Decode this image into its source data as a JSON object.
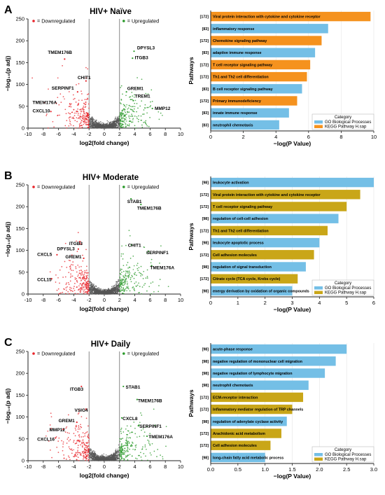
{
  "panels": [
    {
      "letter": "A",
      "title": "HIV+ Naïve",
      "volcano": {
        "xlabel": "log2(fold change)",
        "ylabel": "−log₁₀(p adj)",
        "ymax": 250,
        "yticks": [
          0,
          50,
          100,
          150,
          200,
          250
        ],
        "xticks": [
          -10,
          -8,
          -6,
          -4,
          -2,
          0,
          2,
          4,
          6,
          8,
          10
        ],
        "legend_down": "= Downregulated",
        "legend_up": "= Upregulated",
        "genes": [
          {
            "name": "TMEM176B",
            "x": -5.2,
            "y": 158,
            "lx": -7.4,
            "ly": 170,
            "side": "down"
          },
          {
            "name": "CHIT1",
            "x": -2.4,
            "y": 108,
            "lx": -3.5,
            "ly": 112,
            "side": "down"
          },
          {
            "name": "SERPINF1",
            "x": -3.5,
            "y": 83,
            "lx": -6.9,
            "ly": 88,
            "side": "down"
          },
          {
            "name": "TMEM176A",
            "x": -6.3,
            "y": 57,
            "lx": -9.4,
            "ly": 55,
            "side": "down"
          },
          {
            "name": "CXCL10",
            "x": -7.0,
            "y": 38,
            "lx": -9.4,
            "ly": 36,
            "side": "down"
          },
          {
            "name": "DPYSL3",
            "x": 3.9,
            "y": 176,
            "lx": 4.3,
            "ly": 180,
            "side": "up"
          },
          {
            "name": "ITGB3",
            "x": 3.7,
            "y": 160,
            "lx": 4.0,
            "ly": 158,
            "side": "up"
          },
          {
            "name": "GREM1",
            "x": 2.9,
            "y": 83,
            "lx": 3.0,
            "ly": 87,
            "side": "up"
          },
          {
            "name": "TREM1",
            "x": 3.8,
            "y": 63,
            "lx": 4.0,
            "ly": 70,
            "side": "up"
          },
          {
            "name": "MMP12",
            "x": 6.3,
            "y": 45,
            "lx": 6.6,
            "ly": 42,
            "side": "up"
          }
        ]
      },
      "bars": {
        "xlabel": "−log(P Value)",
        "ylabel": "Pathways",
        "xmax": 10,
        "xticks": [
          0,
          2,
          4,
          6,
          8,
          10
        ],
        "legend_title": "Category",
        "legend_items": [
          {
            "label": "GO Biological Processes",
            "color": "#74bfe6"
          },
          {
            "label": "KEGG Pathway H.sap",
            "color": "#f5921e"
          }
        ],
        "items": [
          {
            "label": "Viral protein interaction with cytokine and cytokine receptor",
            "count": "[172]",
            "value": 9.8,
            "cat": "kegg"
          },
          {
            "label": "inflammatory response",
            "count": "[83]",
            "value": 7.2,
            "cat": "go"
          },
          {
            "label": "Chemokine signaling pathway",
            "count": "[172]",
            "value": 6.8,
            "cat": "kegg"
          },
          {
            "label": "adaptive immune response",
            "count": "[83]",
            "value": 6.4,
            "cat": "go"
          },
          {
            "label": "T cell receptor signaling pathway",
            "count": "[172]",
            "value": 6.1,
            "cat": "kegg"
          },
          {
            "label": "Th1 and Th2 cell differentiation",
            "count": "[172]",
            "value": 5.9,
            "cat": "kegg"
          },
          {
            "label": "B cell receptor signaling pathway",
            "count": "[83]",
            "value": 5.6,
            "cat": "go"
          },
          {
            "label": "Primary immunodeficiency",
            "count": "[172]",
            "value": 5.3,
            "cat": "kegg"
          },
          {
            "label": "innate immune response",
            "count": "[83]",
            "value": 4.8,
            "cat": "go"
          },
          {
            "label": "neutrophil chemotaxis",
            "count": "[83]",
            "value": 4.2,
            "cat": "go"
          }
        ]
      }
    },
    {
      "letter": "B",
      "title": "HIV+ Moderate",
      "volcano": {
        "xlabel": "log2(fold change)",
        "ylabel": "−log₁₀(p adj)",
        "ymax": 250,
        "yticks": [
          0,
          50,
          100,
          150,
          200,
          250
        ],
        "xticks": [
          -10,
          -8,
          -6,
          -4,
          -2,
          0,
          2,
          4,
          6,
          8,
          10
        ],
        "legend_down": "= Downregulated",
        "legend_up": "= Upregulated",
        "genes": [
          {
            "name": "STAB1",
            "x": 3.5,
            "y": 218,
            "lx": 3.0,
            "ly": 208,
            "side": "up"
          },
          {
            "name": "TMEM176B",
            "x": 4.8,
            "y": 205,
            "lx": 4.3,
            "ly": 193,
            "side": "up"
          },
          {
            "name": "ITGB3",
            "x": -3.2,
            "y": 120,
            "lx": -4.6,
            "ly": 112,
            "side": "down"
          },
          {
            "name": "DPYSL3",
            "x": -3.4,
            "y": 103,
            "lx": -6.2,
            "ly": 100,
            "side": "down"
          },
          {
            "name": "GREM1",
            "x": -2.7,
            "y": 82,
            "lx": -5.1,
            "ly": 82,
            "side": "down"
          },
          {
            "name": "CXCL5",
            "x": -6.2,
            "y": 90,
            "lx": -8.8,
            "ly": 87,
            "side": "down"
          },
          {
            "name": "CCL15",
            "x": -6.9,
            "y": 35,
            "lx": -8.8,
            "ly": 30,
            "side": "down"
          },
          {
            "name": "CHIT1",
            "x": 3.6,
            "y": 112,
            "lx": 3.1,
            "ly": 108,
            "side": "up"
          },
          {
            "name": "SERPINF1",
            "x": 5.8,
            "y": 98,
            "lx": 5.5,
            "ly": 91,
            "side": "up"
          },
          {
            "name": "TMEM176A",
            "x": 6.2,
            "y": 65,
            "lx": 6.0,
            "ly": 57,
            "side": "up"
          }
        ]
      },
      "bars": {
        "xlabel": "−log(P Value)",
        "ylabel": "Pathways",
        "xmax": 6,
        "xticks": [
          0,
          1,
          2,
          3,
          4,
          5,
          6
        ],
        "legend_title": "Category",
        "legend_items": [
          {
            "label": "GO Biological Processes",
            "color": "#74bfe6"
          },
          {
            "label": "KEGG Pathway H.sap",
            "color": "#c9a618"
          }
        ],
        "items": [
          {
            "label": "leukocyte activation",
            "count": "[98]",
            "value": 6.0,
            "cat": "go"
          },
          {
            "label": "Viral protein interaction with cytokine and cytokine receptor",
            "count": "[172]",
            "value": 5.5,
            "cat": "kegg"
          },
          {
            "label": "T cell receptor signaling pathway",
            "count": "[172]",
            "value": 5.0,
            "cat": "kegg"
          },
          {
            "label": "regulation of cell-cell adhesion",
            "count": "[98]",
            "value": 4.7,
            "cat": "go"
          },
          {
            "label": "Th1 and Th2 cell differentiation",
            "count": "[172]",
            "value": 4.3,
            "cat": "kegg"
          },
          {
            "label": "leukocyte apoptotic process",
            "count": "[98]",
            "value": 4.0,
            "cat": "go"
          },
          {
            "label": "Cell adhesion molecules",
            "count": "[172]",
            "value": 3.8,
            "cat": "kegg"
          },
          {
            "label": "regulation of signal transduction",
            "count": "[98]",
            "value": 3.5,
            "cat": "go"
          },
          {
            "label": "Citrate cycle (TCA cycle, Krebs cycle)",
            "count": "[172]",
            "value": 3.2,
            "cat": "kegg"
          },
          {
            "label": "energy derivation by oxidation of organic compounds",
            "count": "[98]",
            "value": 3.0,
            "cat": "go"
          }
        ]
      }
    },
    {
      "letter": "C",
      "title": "HIV+ Daily",
      "volcano": {
        "xlabel": "log2(fold change)",
        "ylabel": "−log₁₀(p adj)",
        "ymax": 250,
        "yticks": [
          0,
          50,
          100,
          150,
          200,
          250
        ],
        "xticks": [
          -10,
          -8,
          -6,
          -4,
          -2,
          0,
          2,
          4,
          6,
          8,
          10
        ],
        "legend_down": "= Downregulated",
        "legend_up": "= Upregulated",
        "genes": [
          {
            "name": "ITGB3",
            "x": -3.0,
            "y": 170,
            "lx": -4.5,
            "ly": 160,
            "side": "down"
          },
          {
            "name": "VSIG4",
            "x": -2.4,
            "y": 118,
            "lx": -3.9,
            "ly": 112,
            "side": "down"
          },
          {
            "name": "GREM1",
            "x": -3.6,
            "y": 88,
            "lx": -6.0,
            "ly": 88,
            "side": "down"
          },
          {
            "name": "MMP12",
            "x": -5.4,
            "y": 72,
            "lx": -7.2,
            "ly": 67,
            "side": "down"
          },
          {
            "name": "CXCL16",
            "x": -6.4,
            "y": 52,
            "lx": -8.8,
            "ly": 46,
            "side": "down"
          },
          {
            "name": "STAB1",
            "x": 2.5,
            "y": 170,
            "lx": 2.8,
            "ly": 165,
            "side": "up"
          },
          {
            "name": "TMEM176B",
            "x": 4.3,
            "y": 140,
            "lx": 4.4,
            "ly": 134,
            "side": "up"
          },
          {
            "name": "CXCL8",
            "x": 2.3,
            "y": 98,
            "lx": 2.4,
            "ly": 93,
            "side": "up"
          },
          {
            "name": "SERPINF1",
            "x": 4.5,
            "y": 80,
            "lx": 4.6,
            "ly": 75,
            "side": "up"
          },
          {
            "name": "TMEM176A",
            "x": 5.6,
            "y": 56,
            "lx": 5.8,
            "ly": 51,
            "side": "up"
          }
        ]
      },
      "bars": {
        "xlabel": "−log(P Value)",
        "ylabel": "Pathways",
        "xmax": 3,
        "xticks": [
          0.0,
          0.5,
          1.0,
          1.5,
          2.0,
          2.5,
          3.0
        ],
        "legend_title": "Category",
        "legend_items": [
          {
            "label": "GO Biological Processes",
            "color": "#74bfe6"
          },
          {
            "label": "KEGG Pathway H.sap",
            "color": "#c9a618"
          }
        ],
        "items": [
          {
            "label": "acute-phase response",
            "count": "[98]",
            "value": 2.5,
            "cat": "go"
          },
          {
            "label": "negative regulation of mononuclear cell migration",
            "count": "[98]",
            "value": 2.3,
            "cat": "go"
          },
          {
            "label": "negative regulation of lymphocyte migration",
            "count": "[98]",
            "value": 2.1,
            "cat": "go"
          },
          {
            "label": "neutrophil chemotaxis",
            "count": "[98]",
            "value": 1.8,
            "cat": "go"
          },
          {
            "label": "ECM-receptor interaction",
            "count": "[172]",
            "value": 1.7,
            "cat": "kegg"
          },
          {
            "label": "Inflammatory mediator regulation of TRP channels",
            "count": "[172]",
            "value": 1.5,
            "cat": "kegg"
          },
          {
            "label": "regulation of adenylate cyclase activity",
            "count": "[98]",
            "value": 1.4,
            "cat": "go"
          },
          {
            "label": "Arachidonic acid metabolism",
            "count": "[172]",
            "value": 1.3,
            "cat": "kegg"
          },
          {
            "label": "Cell adhesion molecules",
            "count": "[172]",
            "value": 1.1,
            "cat": "kegg"
          },
          {
            "label": "long-chain fatty acid metabolic process",
            "count": "[98]",
            "value": 1.0,
            "cat": "go"
          }
        ]
      }
    }
  ],
  "colors": {
    "down": "#e8242a",
    "up": "#2a9a2a",
    "ns": "#555555",
    "go": "#74bfe6",
    "kegg_a": "#f5921e",
    "kegg_bc": "#c9a618"
  },
  "chart_data": [
    {
      "type": "scatter",
      "title": "HIV+ Naïve",
      "xlabel": "log2(fold change)",
      "ylabel": "−log10(p adj)",
      "xlim": [
        -10,
        10
      ],
      "ylim": [
        0,
        250
      ]
    },
    {
      "type": "bar",
      "orientation": "horizontal",
      "xlabel": "−log(P Value)",
      "ylabel": "Pathways",
      "xlim": [
        0,
        10
      ]
    },
    {
      "type": "scatter",
      "title": "HIV+ Moderate",
      "xlabel": "log2(fold change)",
      "ylabel": "−log10(p adj)",
      "xlim": [
        -10,
        10
      ],
      "ylim": [
        0,
        250
      ]
    },
    {
      "type": "bar",
      "orientation": "horizontal",
      "xlabel": "−log(P Value)",
      "ylabel": "Pathways",
      "xlim": [
        0,
        6
      ]
    },
    {
      "type": "scatter",
      "title": "HIV+ Daily",
      "xlabel": "log2(fold change)",
      "ylabel": "−log10(p adj)",
      "xlim": [
        -10,
        10
      ],
      "ylim": [
        0,
        250
      ]
    },
    {
      "type": "bar",
      "orientation": "horizontal",
      "xlabel": "−log(P Value)",
      "ylabel": "Pathways",
      "xlim": [
        0,
        3
      ]
    }
  ]
}
